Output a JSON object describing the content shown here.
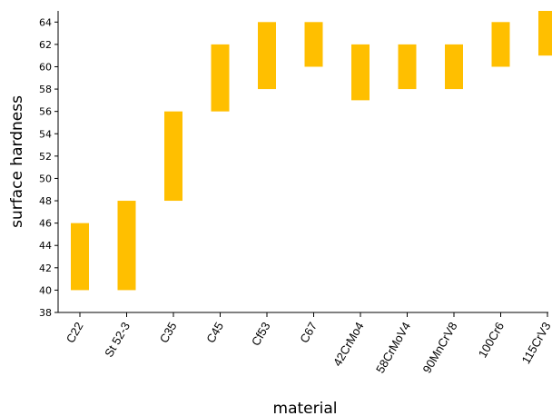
{
  "chart_data": {
    "type": "bar",
    "subtype": "floating-range",
    "xlabel": "material",
    "ylabel": "surface hardness",
    "ylim": [
      38,
      65
    ],
    "yticks": [
      38,
      40,
      42,
      44,
      46,
      48,
      50,
      52,
      54,
      56,
      58,
      60,
      62,
      64
    ],
    "categories": [
      "C22",
      "St 52-3",
      "C35",
      "C45",
      "Cf53",
      "C67",
      "42CrMo4",
      "58CrMoV4",
      "90MnCrV8",
      "100Cr6",
      "115CrV3"
    ],
    "series": [
      {
        "ranges": [
          [
            40,
            46
          ],
          [
            40,
            48
          ],
          [
            48,
            56
          ],
          [
            56,
            62
          ],
          [
            58,
            64
          ],
          [
            60,
            64
          ],
          [
            57,
            62
          ],
          [
            58,
            62
          ],
          [
            58,
            62
          ],
          [
            60,
            64
          ],
          [
            61,
            65
          ]
        ]
      }
    ],
    "colors": {
      "bar": "#FFBF00",
      "axis": "#000000"
    },
    "grid": false,
    "legend": "none"
  }
}
